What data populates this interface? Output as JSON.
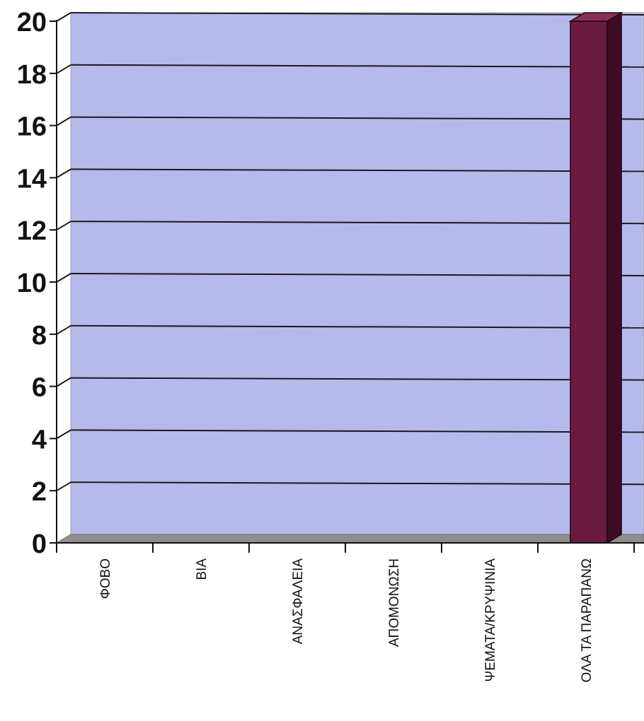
{
  "chart_data": {
    "type": "bar",
    "categories": [
      "ΦΟΒΟ",
      "ΒΙΑ",
      "ΑΝΑΣΦΑΛΕΙΑ",
      "ΑΠΟΜΟΝΩΣΗ",
      "ΨΕΜΑΤΑ/ΚΡΥΨΙΝΙΑ",
      "ΟΛΑ ΤΑ ΠΑΡΑΠΑΝΩ"
    ],
    "values": [
      0,
      0,
      0,
      0,
      0,
      20
    ],
    "yticks": [
      "0",
      "2",
      "4",
      "6",
      "8",
      "10",
      "12",
      "14",
      "16",
      "18",
      "20"
    ],
    "ylim": [
      0,
      20
    ],
    "grid": true,
    "colors": {
      "plot_wall": "#b6b9ec",
      "floor": "#8f8f8f",
      "bar_front": "#6b1c3e",
      "bar_side": "#3d0c22",
      "bar_top": "#8a2f55"
    }
  }
}
